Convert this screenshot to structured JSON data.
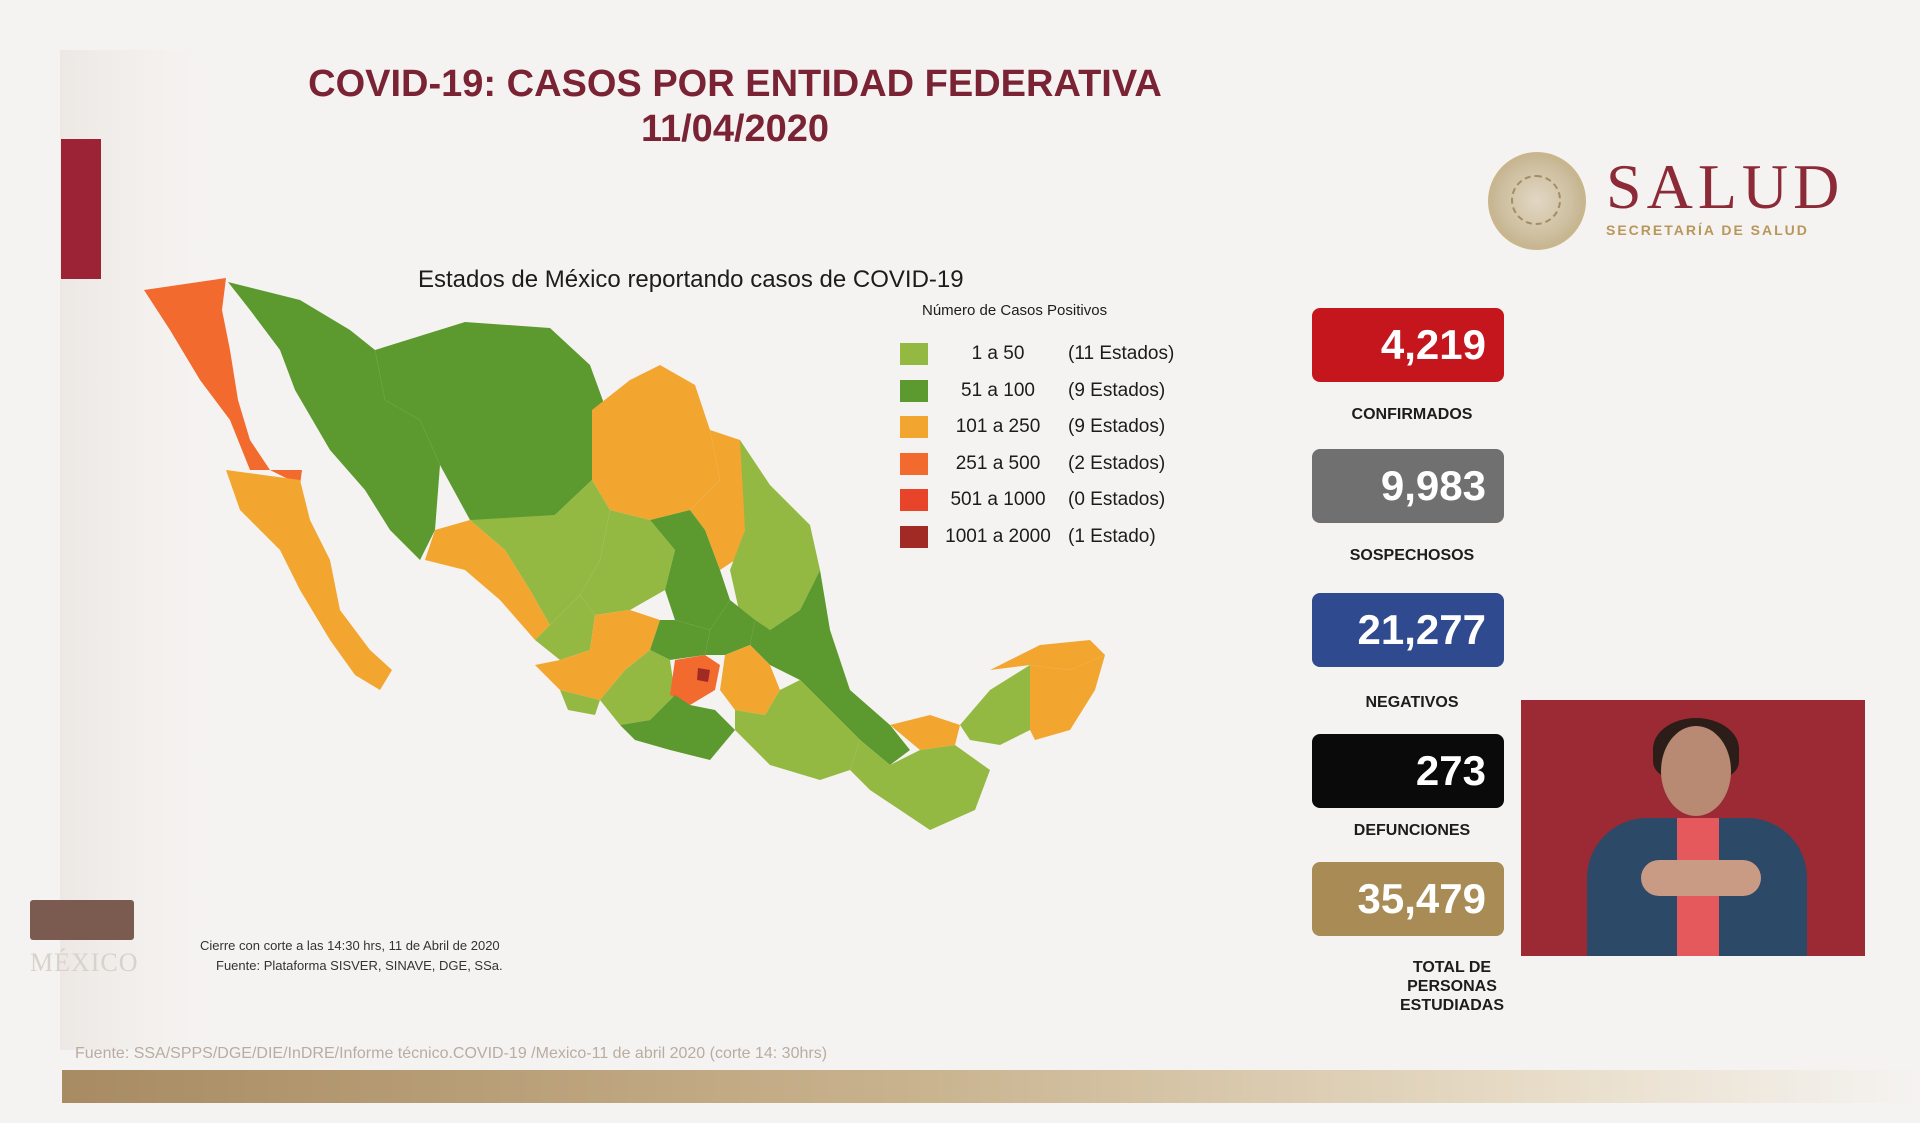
{
  "header": {
    "title_line1": "COVID-19: CASOS POR ENTIDAD FEDERATIVA",
    "title_line2": "11/04/2020"
  },
  "logo": {
    "word": "SALUD",
    "subtitle": "SECRETARÍA DE SALUD"
  },
  "map": {
    "title": "Estados de México reportando casos de COVID-19",
    "legend_title": "Número de Casos Positivos",
    "legend": [
      {
        "range": "1 a 50",
        "count": "(11 Estados)",
        "color": "#94b943"
      },
      {
        "range": "51 a 100",
        "count": "(9 Estados)",
        "color": "#5c9a2f"
      },
      {
        "range": "101 a 250",
        "count": "(9 Estados)",
        "color": "#f2a630"
      },
      {
        "range": "251 a 500",
        "count": "(2 Estados)",
        "color": "#f26a2e"
      },
      {
        "range": "501 a 1000",
        "count": "(0 Estados)",
        "color": "#e8442a"
      },
      {
        "range": "1001 a 2000",
        "count": "(1 Estado)",
        "color": "#a12a25"
      }
    ],
    "note_line1": "Cierre con corte a las 14:30 hrs, 11 de Abril de 2020",
    "note_line2": "Fuente: Plataforma SISVER, SINAVE, DGE, SSa."
  },
  "stats": [
    {
      "value": "4,219",
      "label": "CONFIRMADOS",
      "color": "#c4161c"
    },
    {
      "value": "9,983",
      "label": "SOSPECHOSOS",
      "color": "#707070"
    },
    {
      "value": "21,277",
      "label": "NEGATIVOS",
      "color": "#2f4a8e"
    },
    {
      "value": "273",
      "label": "DEFUNCIONES",
      "color": "#0a0a0a"
    },
    {
      "value": "35,479",
      "label": "TOTAL DE PERSONAS ESTUDIADAS",
      "color": "#a88b55"
    }
  ],
  "footer": {
    "brand": "MÉXICO",
    "source": "Fuente: SSA/SPPS/DGE/DIE/InDRE/Informe técnico.COVID-19 /Mexico-11 de abril 2020 (corte 14: 30hrs)"
  },
  "colors": {
    "title": "#7a2334",
    "accent": "#9b2335",
    "logo": "#8c2a38",
    "logo_sub": "#b8975a"
  }
}
